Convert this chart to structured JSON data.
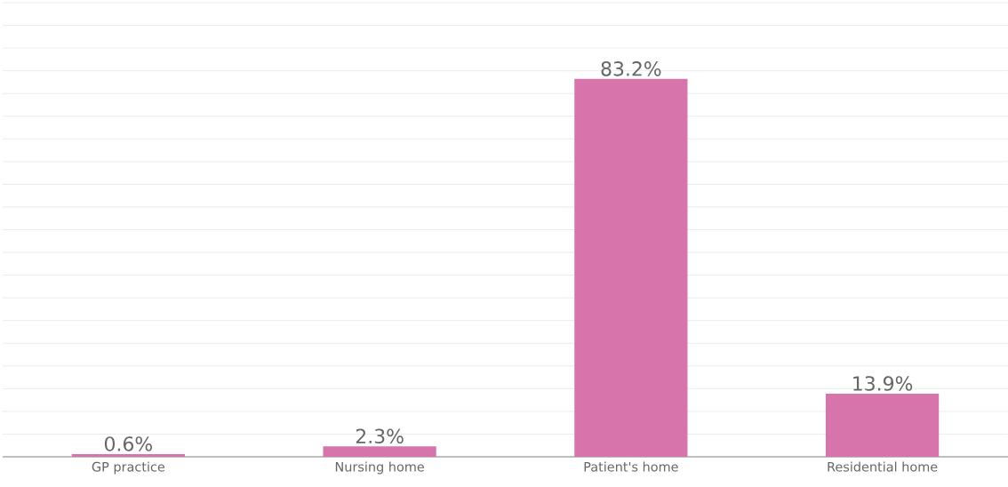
{
  "chart_data": {
    "type": "bar",
    "categories": [
      "GP practice",
      "Nursing home",
      "Patient's home",
      "Residential home"
    ],
    "values": [
      0.6,
      2.3,
      83.2,
      13.9
    ],
    "value_labels": [
      "0.6%",
      "2.3%",
      "83.2%",
      "13.9%"
    ],
    "color": "#d774ac",
    "ylim": [
      0,
      100
    ],
    "grid": "y",
    "tick_labels": "x"
  }
}
